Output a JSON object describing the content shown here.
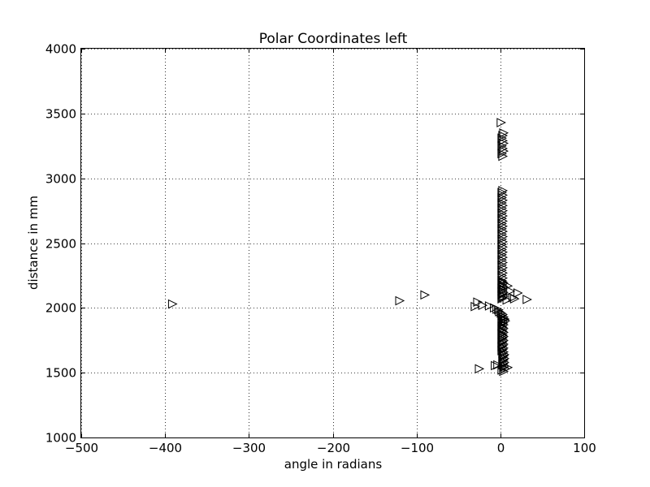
{
  "chart_data": {
    "type": "scatter",
    "title": "Polar Coordinates left",
    "xlabel": "angle in radians",
    "ylabel": "distance in mm",
    "xlim": [
      -500,
      100
    ],
    "ylim": [
      1000,
      4000
    ],
    "xticks": [
      -500,
      -400,
      -300,
      -200,
      -100,
      0,
      100
    ],
    "yticks": [
      1000,
      1500,
      2000,
      2500,
      3000,
      3500,
      4000
    ],
    "xtick_labels": [
      "−500",
      "−400",
      "−300",
      "−200",
      "−100",
      "0",
      "100"
    ],
    "ytick_labels": [
      "1000",
      "1500",
      "2000",
      "2500",
      "3000",
      "3500",
      "4000"
    ],
    "grid": true,
    "marker": "triangle-right",
    "marker_color": "#000000",
    "series": [
      {
        "points": [
          [
            -392,
            2030
          ],
          [
            -121,
            2055
          ],
          [
            -91,
            2100
          ],
          [
            -31,
            2010
          ],
          [
            -28,
            2045
          ],
          [
            -22,
            2020
          ],
          [
            -14,
            2015
          ],
          [
            -8,
            2000
          ],
          [
            -5,
            1990
          ],
          [
            -3,
            1985
          ],
          [
            -2,
            1970
          ],
          [
            0,
            1960
          ],
          [
            2,
            1950
          ],
          [
            1,
            1940
          ],
          [
            3,
            1930
          ],
          [
            2,
            1920
          ],
          [
            4,
            1910
          ],
          [
            1,
            1900
          ],
          [
            3,
            1890
          ],
          [
            2,
            1880
          ],
          [
            3,
            1870
          ],
          [
            1,
            1860
          ],
          [
            2,
            1850
          ],
          [
            3,
            1840
          ],
          [
            1,
            1830
          ],
          [
            2,
            1820
          ],
          [
            3,
            1810
          ],
          [
            1,
            1800
          ],
          [
            2,
            1790
          ],
          [
            3,
            1780
          ],
          [
            2,
            1770
          ],
          [
            1,
            1760
          ],
          [
            3,
            1750
          ],
          [
            2,
            1740
          ],
          [
            1,
            1730
          ],
          [
            3,
            1720
          ],
          [
            2,
            1710
          ],
          [
            1,
            1700
          ],
          [
            3,
            1690
          ],
          [
            2,
            1680
          ],
          [
            1,
            1670
          ],
          [
            3,
            1660
          ],
          [
            2,
            1650
          ],
          [
            4,
            1640
          ],
          [
            3,
            1630
          ],
          [
            2,
            1620
          ],
          [
            4,
            1610
          ],
          [
            3,
            1600
          ],
          [
            2,
            1590
          ],
          [
            4,
            1580
          ],
          [
            3,
            1570
          ],
          [
            2,
            1560
          ],
          [
            4,
            1550
          ],
          [
            3,
            1540
          ],
          [
            5,
            1530
          ],
          [
            1,
            1520
          ],
          [
            3,
            1510
          ],
          [
            8,
            1540
          ],
          [
            -26,
            1530
          ],
          [
            -7,
            1555
          ],
          [
            -4,
            1560
          ],
          [
            5,
            1900
          ],
          [
            4,
            1915
          ],
          [
            1,
            2070
          ],
          [
            2,
            2080
          ],
          [
            3,
            2090
          ],
          [
            1,
            2100
          ],
          [
            2,
            2110
          ],
          [
            3,
            2120
          ],
          [
            1,
            2130
          ],
          [
            2,
            2140
          ],
          [
            1,
            2150
          ],
          [
            3,
            2160
          ],
          [
            2,
            2170
          ],
          [
            1,
            2180
          ],
          [
            3,
            2190
          ],
          [
            2,
            2200
          ],
          [
            1,
            2210
          ],
          [
            2,
            2230
          ],
          [
            1,
            2250
          ],
          [
            2,
            2270
          ],
          [
            1,
            2290
          ],
          [
            2,
            2310
          ],
          [
            1,
            2330
          ],
          [
            2,
            2350
          ],
          [
            1,
            2370
          ],
          [
            2,
            2390
          ],
          [
            1,
            2410
          ],
          [
            2,
            2430
          ],
          [
            1,
            2450
          ],
          [
            2,
            2470
          ],
          [
            1,
            2490
          ],
          [
            2,
            2510
          ],
          [
            1,
            2530
          ],
          [
            2,
            2550
          ],
          [
            1,
            2570
          ],
          [
            2,
            2590
          ],
          [
            1,
            2610
          ],
          [
            2,
            2630
          ],
          [
            1,
            2650
          ],
          [
            2,
            2670
          ],
          [
            1,
            2690
          ],
          [
            2,
            2710
          ],
          [
            1,
            2730
          ],
          [
            2,
            2750
          ],
          [
            1,
            2770
          ],
          [
            2,
            2790
          ],
          [
            1,
            2810
          ],
          [
            2,
            2830
          ],
          [
            1,
            2850
          ],
          [
            2,
            2870
          ],
          [
            1,
            2890
          ],
          [
            2,
            2905
          ],
          [
            8,
            2170
          ],
          [
            11,
            2130
          ],
          [
            14,
            2080
          ],
          [
            20,
            2115
          ],
          [
            31,
            2065
          ],
          [
            16,
            2070
          ],
          [
            7,
            2060
          ],
          [
            2,
            3170
          ],
          [
            1,
            3190
          ],
          [
            3,
            3210
          ],
          [
            2,
            3230
          ],
          [
            1,
            3250
          ],
          [
            3,
            3270
          ],
          [
            2,
            3290
          ],
          [
            1,
            3310
          ],
          [
            2,
            3330
          ],
          [
            3,
            3350
          ],
          [
            0,
            3430
          ]
        ]
      }
    ]
  }
}
